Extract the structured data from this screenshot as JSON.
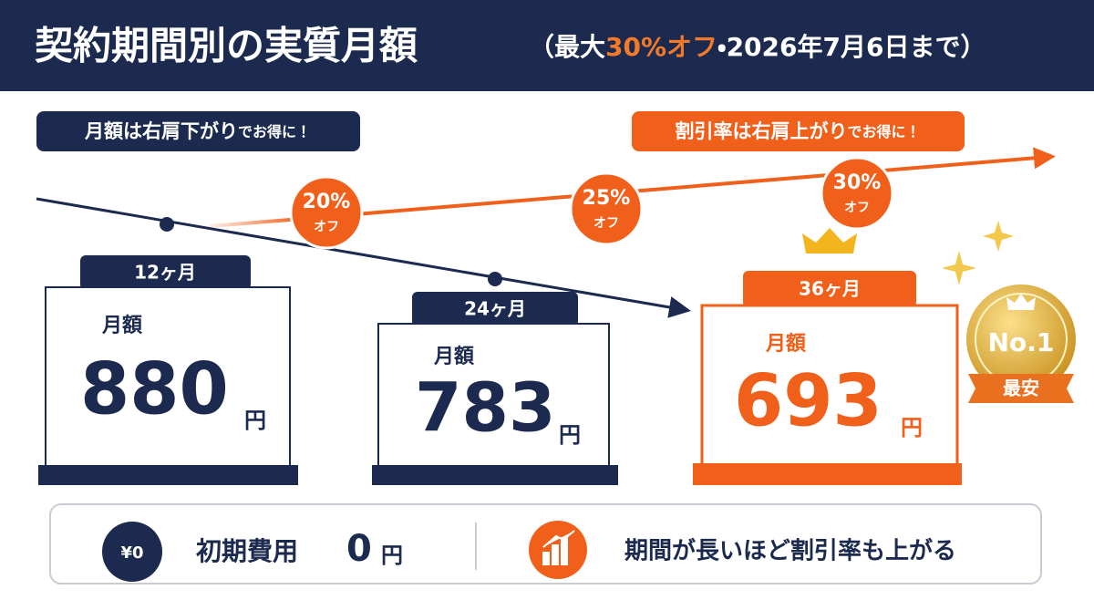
{
  "header": {
    "title": "契約期間別の実質月額",
    "subtitle_pre": "（最大",
    "subtitle_highlight": "30%オフ",
    "subtitle_post": "・2026年7月6日まで）"
  },
  "badges": [
    {
      "main": "月額は右肩下がり",
      "sub": "でお得に！"
    },
    {
      "main": "割引率は右肩上がり",
      "sub": "でお得に！"
    }
  ],
  "discounts": [
    {
      "rate": "20%",
      "label": "オフ"
    },
    {
      "rate": "25%",
      "label": "オフ"
    },
    {
      "rate": "30%",
      "label": "オフ"
    }
  ],
  "plans": [
    {
      "term": "12ヶ月",
      "label": "月額",
      "price": "880",
      "unit": "円"
    },
    {
      "term": "24ヶ月",
      "label": "月額",
      "price": "783",
      "unit": "円"
    },
    {
      "term": "36ヶ月",
      "label": "月額",
      "price": "693",
      "unit": "円"
    }
  ],
  "medal": {
    "rank": "No.1",
    "text": "最安"
  },
  "footer": {
    "icon": "¥0",
    "fee_label": "初期費用",
    "fee_value": "0",
    "fee_unit": "円",
    "note": "期間が長いほど割引率も上がる"
  }
}
